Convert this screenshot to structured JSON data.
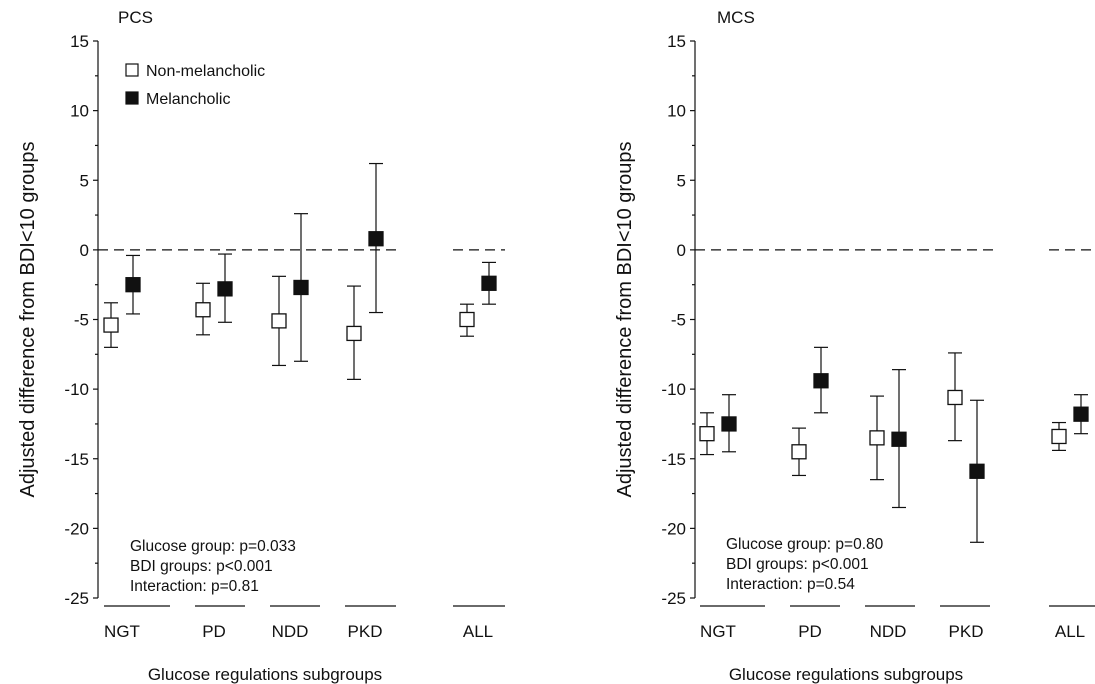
{
  "chart_data": [
    {
      "type": "scatter",
      "title": "PCS",
      "ylabel": "Adjusted difference from BDI<10 groups",
      "xlabel": "Glucose regulations subgroups",
      "categories": [
        "NGT",
        "PD",
        "NDD",
        "PKD",
        "ALL"
      ],
      "ylim": [
        -25,
        15
      ],
      "yticks": [
        15,
        10,
        5,
        0,
        -5,
        -10,
        -15,
        -20,
        -25
      ],
      "reference_line": 0,
      "legend": {
        "placement": "top-left",
        "entries": [
          "Non-melancholic",
          "Melancholic"
        ]
      },
      "series": [
        {
          "name": "Non-melancholic",
          "marker": "open-square",
          "values": [
            -5.4,
            -4.3,
            -5.1,
            -6.0,
            -5.0
          ],
          "lower": [
            -7.0,
            -6.1,
            -8.3,
            -9.3,
            -6.2
          ],
          "upper": [
            -3.8,
            -2.4,
            -1.9,
            -2.6,
            -3.9
          ]
        },
        {
          "name": "Melancholic",
          "marker": "filled-square",
          "values": [
            -2.5,
            -2.8,
            -2.7,
            0.8,
            -2.4
          ],
          "lower": [
            -4.6,
            -5.2,
            -8.0,
            -4.5,
            -3.9
          ],
          "upper": [
            -0.4,
            -0.3,
            2.6,
            6.2,
            -0.9
          ]
        }
      ],
      "annotations": [
        "Glucose group: p=0.033",
        "BDI groups: p<0.001",
        "Interaction: p=0.81"
      ]
    },
    {
      "type": "scatter",
      "title": "MCS",
      "ylabel": "Adjusted difference from BDI<10 groups",
      "xlabel": "Glucose regulations subgroups",
      "categories": [
        "NGT",
        "PD",
        "NDD",
        "PKD",
        "ALL"
      ],
      "ylim": [
        -25,
        15
      ],
      "yticks": [
        15,
        10,
        5,
        0,
        -5,
        -10,
        -15,
        -20,
        -25
      ],
      "reference_line": 0,
      "series": [
        {
          "name": "Non-melancholic",
          "marker": "open-square",
          "values": [
            -13.2,
            -14.5,
            -13.5,
            -10.6,
            -13.4
          ],
          "lower": [
            -14.7,
            -16.2,
            -16.5,
            -13.7,
            -14.4
          ],
          "upper": [
            -11.7,
            -12.8,
            -10.5,
            -7.4,
            -12.4
          ]
        },
        {
          "name": "Melancholic",
          "marker": "filled-square",
          "values": [
            -12.5,
            -9.4,
            -13.6,
            -15.9,
            -11.8
          ],
          "lower": [
            -14.5,
            -11.7,
            -18.5,
            -21.0,
            -13.2
          ],
          "upper": [
            -10.4,
            -7.0,
            -8.6,
            -10.8,
            -10.4
          ]
        }
      ],
      "annotations": [
        "Glucose group: p=0.80",
        "BDI groups: p<0.001",
        "Interaction: p=0.54"
      ]
    }
  ]
}
